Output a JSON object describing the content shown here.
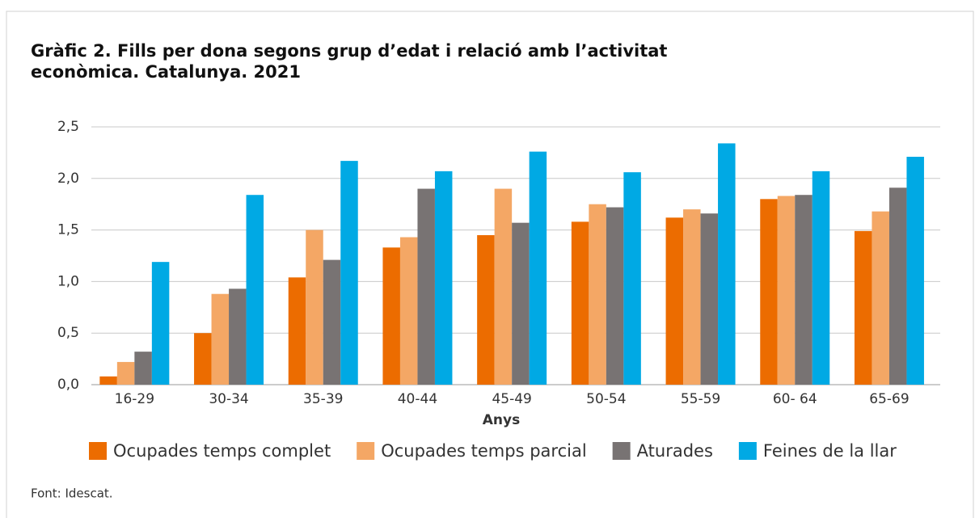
{
  "chart_data": {
    "type": "bar",
    "title": "Gràfic 2. Fills per dona segons grup d’edat i relació amb l’activitat econòmica. Catalunya. 2021",
    "x_label": "Anys",
    "source": "Font: Idescat.",
    "categories": [
      "16-29",
      "30-34",
      "35-39",
      "40-44",
      "45-49",
      "50-54",
      "55-59",
      "60- 64",
      "65-69"
    ],
    "series": [
      {
        "name": "Ocupades temps complet",
        "color": "#ec6c00",
        "values": [
          0.08,
          0.5,
          1.04,
          1.33,
          1.45,
          1.58,
          1.62,
          1.8,
          1.49
        ]
      },
      {
        "name": "Ocupades temps parcial",
        "color": "#f4a765",
        "values": [
          0.22,
          0.88,
          1.5,
          1.43,
          1.9,
          1.75,
          1.7,
          1.83,
          1.68
        ]
      },
      {
        "name": "Aturades",
        "color": "#787373",
        "values": [
          0.32,
          0.93,
          1.21,
          1.9,
          1.57,
          1.72,
          1.66,
          1.84,
          1.91
        ]
      },
      {
        "name": "Feines de la llar",
        "color": "#00a9e4",
        "values": [
          1.19,
          1.84,
          2.17,
          2.07,
          2.26,
          2.06,
          2.34,
          2.07,
          2.21
        ]
      }
    ],
    "ylim": [
      0,
      2.5
    ],
    "yticks": [
      {
        "value": 0,
        "label": "0,0"
      },
      {
        "value": 0.5,
        "label": "0,5"
      },
      {
        "value": 1,
        "label": "1,0"
      },
      {
        "value": 1.5,
        "label": "1,5"
      },
      {
        "value": 2,
        "label": "2,0"
      },
      {
        "value": 2.5,
        "label": "2,5"
      }
    ],
    "grid": true,
    "legend": "bottom"
  }
}
